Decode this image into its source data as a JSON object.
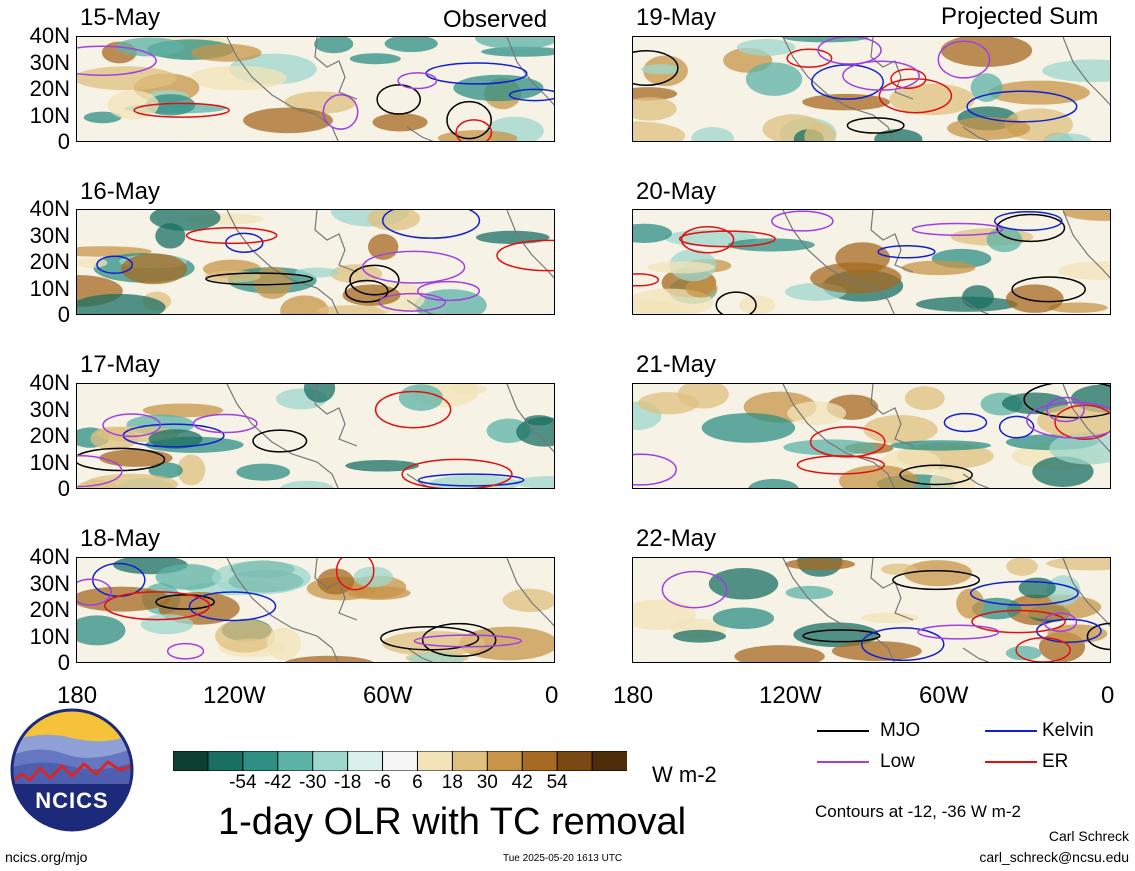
{
  "headers": {
    "observed": "Observed",
    "projected": "Projected Sum"
  },
  "left_dates": [
    "15-May",
    "16-May",
    "17-May",
    "18-May"
  ],
  "right_dates": [
    "19-May",
    "20-May",
    "21-May",
    "22-May"
  ],
  "lat_ticks": [
    "40N",
    "30N",
    "20N",
    "10N",
    "0"
  ],
  "lon_ticks": [
    "180",
    "120W",
    "60W",
    "0"
  ],
  "colorbar": {
    "colors": [
      "#0e3f33",
      "#1a6f63",
      "#2e8f84",
      "#5cb3a7",
      "#9ed7cc",
      "#d8efea",
      "#f6f6f6",
      "#f2e3b8",
      "#dfc07f",
      "#c79448",
      "#a66a22",
      "#7a4812",
      "#4e2d0a"
    ],
    "ticks": [
      "-54",
      "-42",
      "-30",
      "-18",
      "-6",
      "6",
      "18",
      "30",
      "42",
      "54"
    ],
    "units": "W m-2"
  },
  "legend": [
    {
      "label": "MJO",
      "color": "#000000"
    },
    {
      "label": "Kelvin",
      "color": "#1020d0"
    },
    {
      "label": "Low",
      "color": "#a040e0"
    },
    {
      "label": "ER",
      "color": "#e01010"
    }
  ],
  "title": "1-day OLR with TC removal",
  "contours_note": "Contours at -12, -36 W m-2",
  "author": "Carl Schreck",
  "email": "carl_schreck@ncsu.edu",
  "website": "ncics.org/mjo",
  "timestamp": "Tue 2025-05-20 1613 UTC",
  "logo_text": "NCICS"
}
